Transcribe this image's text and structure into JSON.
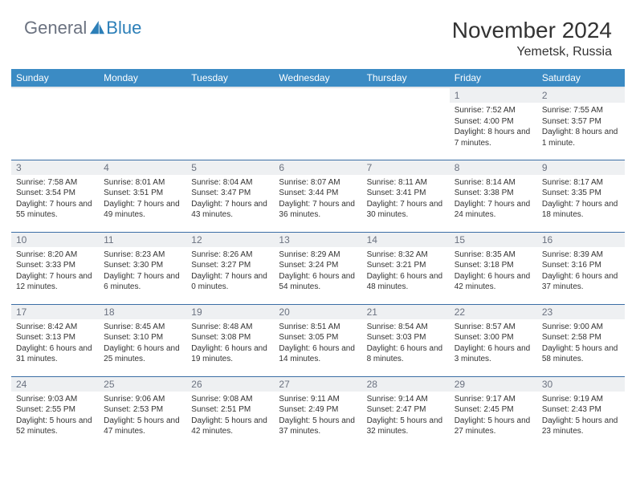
{
  "brand": {
    "text1": "General",
    "text2": "Blue"
  },
  "title": "November 2024",
  "location": "Yemetsk, Russia",
  "colors": {
    "header_bg": "#3b8bc4",
    "header_text": "#ffffff",
    "daynum_bg": "#eef0f2",
    "daynum_text": "#6b7280",
    "cell_border": "#3b6ea5",
    "body_text": "#333333",
    "logo_gray": "#6b7280",
    "logo_blue": "#2c7fb8"
  },
  "weekdays": [
    "Sunday",
    "Monday",
    "Tuesday",
    "Wednesday",
    "Thursday",
    "Friday",
    "Saturday"
  ],
  "layout": {
    "first_weekday_index": 5,
    "days_in_month": 30
  },
  "days": {
    "1": {
      "sunrise": "7:52 AM",
      "sunset": "4:00 PM",
      "daylight": "8 hours and 7 minutes."
    },
    "2": {
      "sunrise": "7:55 AM",
      "sunset": "3:57 PM",
      "daylight": "8 hours and 1 minute."
    },
    "3": {
      "sunrise": "7:58 AM",
      "sunset": "3:54 PM",
      "daylight": "7 hours and 55 minutes."
    },
    "4": {
      "sunrise": "8:01 AM",
      "sunset": "3:51 PM",
      "daylight": "7 hours and 49 minutes."
    },
    "5": {
      "sunrise": "8:04 AM",
      "sunset": "3:47 PM",
      "daylight": "7 hours and 43 minutes."
    },
    "6": {
      "sunrise": "8:07 AM",
      "sunset": "3:44 PM",
      "daylight": "7 hours and 36 minutes."
    },
    "7": {
      "sunrise": "8:11 AM",
      "sunset": "3:41 PM",
      "daylight": "7 hours and 30 minutes."
    },
    "8": {
      "sunrise": "8:14 AM",
      "sunset": "3:38 PM",
      "daylight": "7 hours and 24 minutes."
    },
    "9": {
      "sunrise": "8:17 AM",
      "sunset": "3:35 PM",
      "daylight": "7 hours and 18 minutes."
    },
    "10": {
      "sunrise": "8:20 AM",
      "sunset": "3:33 PM",
      "daylight": "7 hours and 12 minutes."
    },
    "11": {
      "sunrise": "8:23 AM",
      "sunset": "3:30 PM",
      "daylight": "7 hours and 6 minutes."
    },
    "12": {
      "sunrise": "8:26 AM",
      "sunset": "3:27 PM",
      "daylight": "7 hours and 0 minutes."
    },
    "13": {
      "sunrise": "8:29 AM",
      "sunset": "3:24 PM",
      "daylight": "6 hours and 54 minutes."
    },
    "14": {
      "sunrise": "8:32 AM",
      "sunset": "3:21 PM",
      "daylight": "6 hours and 48 minutes."
    },
    "15": {
      "sunrise": "8:35 AM",
      "sunset": "3:18 PM",
      "daylight": "6 hours and 42 minutes."
    },
    "16": {
      "sunrise": "8:39 AM",
      "sunset": "3:16 PM",
      "daylight": "6 hours and 37 minutes."
    },
    "17": {
      "sunrise": "8:42 AM",
      "sunset": "3:13 PM",
      "daylight": "6 hours and 31 minutes."
    },
    "18": {
      "sunrise": "8:45 AM",
      "sunset": "3:10 PM",
      "daylight": "6 hours and 25 minutes."
    },
    "19": {
      "sunrise": "8:48 AM",
      "sunset": "3:08 PM",
      "daylight": "6 hours and 19 minutes."
    },
    "20": {
      "sunrise": "8:51 AM",
      "sunset": "3:05 PM",
      "daylight": "6 hours and 14 minutes."
    },
    "21": {
      "sunrise": "8:54 AM",
      "sunset": "3:03 PM",
      "daylight": "6 hours and 8 minutes."
    },
    "22": {
      "sunrise": "8:57 AM",
      "sunset": "3:00 PM",
      "daylight": "6 hours and 3 minutes."
    },
    "23": {
      "sunrise": "9:00 AM",
      "sunset": "2:58 PM",
      "daylight": "5 hours and 58 minutes."
    },
    "24": {
      "sunrise": "9:03 AM",
      "sunset": "2:55 PM",
      "daylight": "5 hours and 52 minutes."
    },
    "25": {
      "sunrise": "9:06 AM",
      "sunset": "2:53 PM",
      "daylight": "5 hours and 47 minutes."
    },
    "26": {
      "sunrise": "9:08 AM",
      "sunset": "2:51 PM",
      "daylight": "5 hours and 42 minutes."
    },
    "27": {
      "sunrise": "9:11 AM",
      "sunset": "2:49 PM",
      "daylight": "5 hours and 37 minutes."
    },
    "28": {
      "sunrise": "9:14 AM",
      "sunset": "2:47 PM",
      "daylight": "5 hours and 32 minutes."
    },
    "29": {
      "sunrise": "9:17 AM",
      "sunset": "2:45 PM",
      "daylight": "5 hours and 27 minutes."
    },
    "30": {
      "sunrise": "9:19 AM",
      "sunset": "2:43 PM",
      "daylight": "5 hours and 23 minutes."
    }
  }
}
